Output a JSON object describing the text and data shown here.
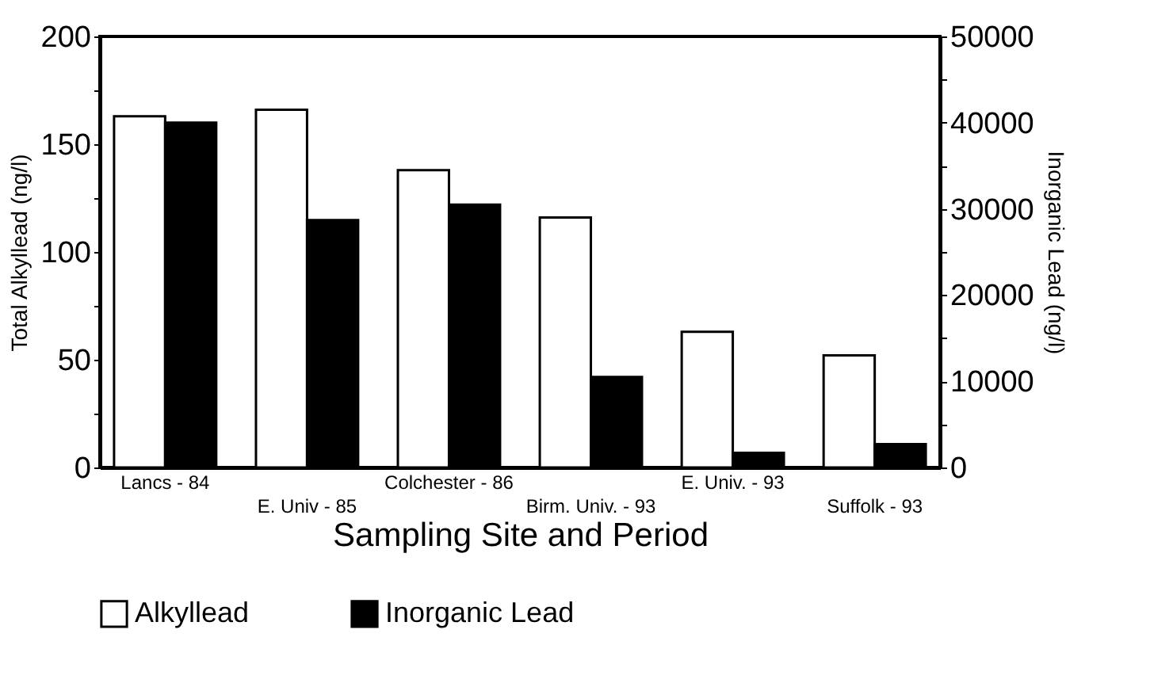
{
  "chart_data": {
    "type": "bar",
    "xlabel": "Sampling Site and Period",
    "ylabel": "Total Alkyllead (ng/l)",
    "y2label": "Inorganic Lead (ng/l)",
    "categories": [
      "Lancs - 84",
      "E. Univ - 85",
      "Colchester - 86",
      "Birm. Univ. - 93",
      "E. Univ. - 93",
      "Suffolk - 93"
    ],
    "series": [
      {
        "name": "Alkyllead",
        "color": "#ffffff",
        "values": [
          163,
          166,
          138,
          116,
          63,
          52
        ]
      },
      {
        "name": "Inorganic Lead",
        "color": "#000000",
        "axis": "y2",
        "values": [
          40000,
          28700,
          30500,
          10500,
          1700,
          2700
        ]
      }
    ],
    "ylim": [
      0,
      200
    ],
    "yticks": [
      0,
      {
        "value": 25,
        "label": null
      },
      50,
      {
        "value": 75,
        "label": null
      },
      100,
      {
        "value": 125,
        "label": null
      },
      150,
      {
        "value": 175,
        "label": null
      },
      200
    ],
    "y2lim": [
      0,
      50000
    ],
    "y2ticks": [
      0,
      {
        "value": 5000,
        "label": null
      },
      10000,
      {
        "value": 15000,
        "label": null
      },
      20000,
      {
        "value": 25000,
        "label": null
      },
      30000,
      {
        "value": 35000,
        "label": null
      },
      40000,
      {
        "value": 45000,
        "label": null
      },
      50000
    ],
    "grid": false,
    "legend": "bottom"
  }
}
